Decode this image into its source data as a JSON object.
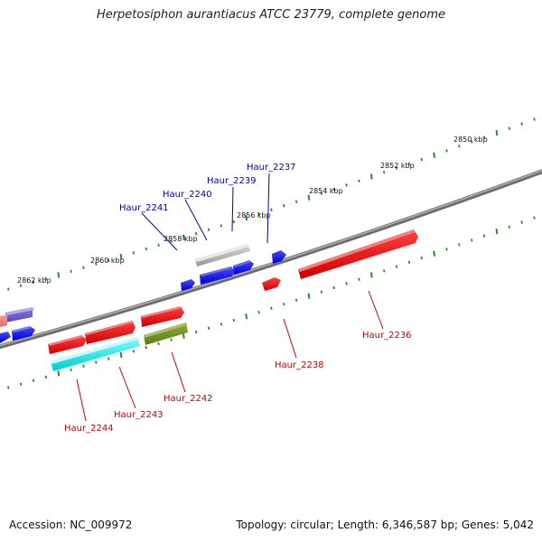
{
  "title": "Herpetosiphon aurantiacus ATCC 23779, complete genome",
  "footer": {
    "accession": "Accession: NC_009972",
    "summary": "Topology: circular; Length: 6,346,587 bp; Genes: 5,042"
  },
  "colors": {
    "backbone": "#7a7a7a",
    "tick": "#2e8b2e",
    "top_label": "#0000bb",
    "bottom_label": "#cc0000"
  },
  "scale_labels": [
    "2850 kbp",
    "2852 kbp",
    "2854 kbp",
    "2856 kbp",
    "2858 kbp",
    "2860 kbp",
    "2862 kbp"
  ],
  "top_gene_labels": [
    "Haur_2237",
    "Haur_2239",
    "Haur_2240",
    "Haur_2241"
  ],
  "bottom_gene_labels": [
    "Haur_2236",
    "Haur_2238",
    "Haur_2242",
    "Haur_2243",
    "Haur_2244"
  ]
}
